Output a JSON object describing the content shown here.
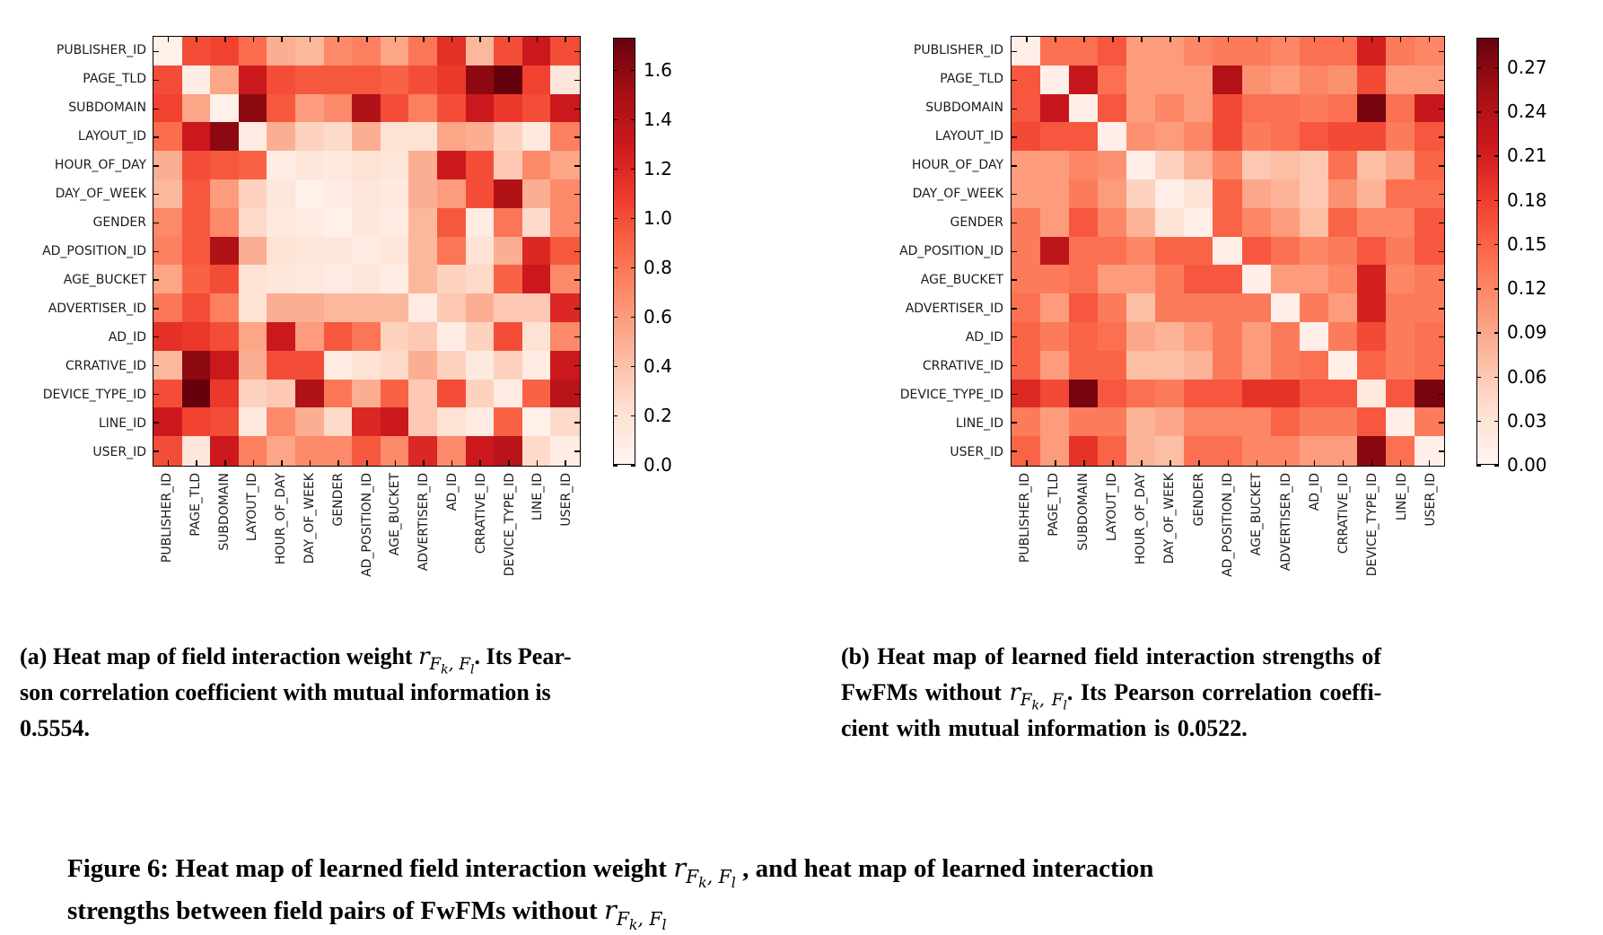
{
  "figure_background": "#ffffff",
  "colormap": {
    "name": "Reds",
    "stops": [
      "#fff5f0",
      "#fee0d2",
      "#fcbba1",
      "#fc9272",
      "#fb6a4a",
      "#ef3b2c",
      "#cb181d",
      "#a50f15",
      "#67000d"
    ]
  },
  "fields": [
    "PUBLISHER_ID",
    "PAGE_TLD",
    "SUBDOMAIN",
    "LAYOUT_ID",
    "HOUR_OF_DAY",
    "DAY_OF_WEEK",
    "GENDER",
    "AD_POSITION_ID",
    "AGE_BUCKET",
    "ADVERTISER_ID",
    "AD_ID",
    "CRRATIVE_ID",
    "DEVICE_TYPE_ID",
    "LINE_ID",
    "USER_ID"
  ],
  "chart_data": [
    {
      "type": "heatmap",
      "panel": "a",
      "title": "Heat map of field interaction weight r_Fk,Fl",
      "categories": [
        "PUBLISHER_ID",
        "PAGE_TLD",
        "SUBDOMAIN",
        "LAYOUT_ID",
        "HOUR_OF_DAY",
        "DAY_OF_WEEK",
        "GENDER",
        "AD_POSITION_ID",
        "AGE_BUCKET",
        "ADVERTISER_ID",
        "AD_ID",
        "CRRATIVE_ID",
        "DEVICE_TYPE_ID",
        "LINE_ID",
        "USER_ID"
      ],
      "vmin": 0,
      "vmax": 1.73,
      "colorbar_tick_values": [
        1.6,
        1.4,
        1.2,
        1.0,
        0.8,
        0.6,
        0.4,
        0.2,
        0.0
      ],
      "colorbar_tick_labels": [
        "1.6",
        "1.4",
        "1.2",
        "1.0",
        "0.8",
        "0.6",
        "0.4",
        "0.2",
        "0.0"
      ],
      "matrix": [
        [
          0.05,
          1.0,
          1.05,
          0.85,
          0.5,
          0.45,
          0.7,
          0.75,
          0.55,
          0.8,
          1.15,
          0.45,
          1.0,
          1.3,
          1.0
        ],
        [
          1.0,
          0.08,
          0.55,
          1.3,
          1.0,
          0.95,
          0.95,
          0.95,
          0.9,
          1.0,
          1.1,
          1.6,
          1.73,
          1.05,
          0.15
        ],
        [
          1.05,
          0.55,
          0.05,
          1.6,
          0.95,
          0.6,
          0.7,
          1.45,
          1.0,
          0.75,
          1.0,
          1.3,
          1.1,
          1.0,
          1.3
        ],
        [
          0.85,
          1.3,
          1.6,
          0.1,
          0.5,
          0.3,
          0.25,
          0.5,
          0.2,
          0.2,
          0.55,
          0.5,
          0.3,
          0.12,
          0.75
        ],
        [
          0.5,
          1.0,
          0.95,
          0.9,
          0.08,
          0.15,
          0.12,
          0.2,
          0.15,
          0.5,
          1.3,
          1.0,
          0.35,
          0.7,
          0.55
        ],
        [
          0.45,
          0.95,
          0.6,
          0.3,
          0.15,
          0.05,
          0.1,
          0.15,
          0.12,
          0.5,
          0.6,
          1.0,
          1.45,
          0.5,
          0.7
        ],
        [
          0.7,
          0.95,
          0.7,
          0.25,
          0.12,
          0.1,
          0.05,
          0.15,
          0.1,
          0.45,
          0.95,
          0.1,
          0.8,
          0.25,
          0.7
        ],
        [
          0.75,
          0.95,
          1.45,
          0.5,
          0.2,
          0.15,
          0.15,
          0.1,
          0.15,
          0.45,
          0.8,
          0.2,
          0.5,
          1.2,
          0.95
        ],
        [
          0.55,
          0.9,
          1.0,
          0.2,
          0.15,
          0.12,
          0.1,
          0.15,
          0.08,
          0.45,
          0.3,
          0.25,
          0.9,
          1.3,
          0.7
        ],
        [
          0.8,
          1.0,
          0.75,
          0.2,
          0.5,
          0.5,
          0.45,
          0.45,
          0.45,
          0.1,
          0.35,
          0.5,
          0.35,
          0.35,
          1.2
        ],
        [
          1.15,
          1.1,
          1.0,
          0.55,
          1.3,
          0.6,
          0.95,
          0.8,
          0.3,
          0.35,
          0.08,
          0.3,
          1.0,
          0.2,
          0.7
        ],
        [
          0.45,
          1.6,
          1.3,
          0.5,
          1.0,
          1.0,
          0.1,
          0.2,
          0.25,
          0.5,
          0.3,
          0.12,
          0.3,
          0.1,
          1.3
        ],
        [
          1.0,
          1.73,
          1.1,
          0.3,
          0.35,
          1.45,
          0.8,
          0.5,
          0.9,
          0.35,
          1.0,
          0.3,
          0.1,
          0.9,
          1.4
        ],
        [
          1.3,
          1.05,
          1.0,
          0.12,
          0.7,
          0.5,
          0.25,
          1.2,
          1.3,
          0.35,
          0.2,
          0.1,
          0.9,
          0.05,
          0.25
        ],
        [
          1.0,
          0.15,
          1.3,
          0.75,
          0.55,
          0.7,
          0.7,
          0.95,
          0.7,
          1.2,
          0.7,
          1.3,
          1.4,
          0.25,
          0.08
        ]
      ]
    },
    {
      "type": "heatmap",
      "panel": "b",
      "title": "Heat map of learned field interaction strengths of FwFMs without r_Fk,Fl",
      "categories": [
        "PUBLISHER_ID",
        "PAGE_TLD",
        "SUBDOMAIN",
        "LAYOUT_ID",
        "HOUR_OF_DAY",
        "DAY_OF_WEEK",
        "GENDER",
        "AD_POSITION_ID",
        "AGE_BUCKET",
        "ADVERTISER_ID",
        "AD_ID",
        "CRRATIVE_ID",
        "DEVICE_TYPE_ID",
        "LINE_ID",
        "USER_ID"
      ],
      "vmin": 0,
      "vmax": 0.29,
      "colorbar_tick_values": [
        0.27,
        0.24,
        0.21,
        0.18,
        0.15,
        0.12,
        0.09,
        0.06,
        0.03,
        0.0
      ],
      "colorbar_tick_labels": [
        "0.27",
        "0.24",
        "0.21",
        "0.18",
        "0.15",
        "0.12",
        "0.09",
        "0.06",
        "0.03",
        "0.00"
      ],
      "matrix": [
        [
          0.01,
          0.14,
          0.14,
          0.16,
          0.1,
          0.1,
          0.12,
          0.13,
          0.13,
          0.12,
          0.14,
          0.14,
          0.21,
          0.13,
          0.12
        ],
        [
          0.16,
          0.01,
          0.22,
          0.14,
          0.1,
          0.1,
          0.1,
          0.24,
          0.11,
          0.1,
          0.12,
          0.11,
          0.17,
          0.1,
          0.1
        ],
        [
          0.16,
          0.22,
          0.01,
          0.16,
          0.1,
          0.12,
          0.1,
          0.17,
          0.14,
          0.14,
          0.13,
          0.14,
          0.28,
          0.14,
          0.22
        ],
        [
          0.17,
          0.16,
          0.16,
          0.01,
          0.11,
          0.1,
          0.12,
          0.17,
          0.13,
          0.14,
          0.16,
          0.17,
          0.17,
          0.13,
          0.16
        ],
        [
          0.1,
          0.1,
          0.12,
          0.11,
          0.01,
          0.05,
          0.08,
          0.12,
          0.06,
          0.07,
          0.06,
          0.14,
          0.07,
          0.09,
          0.15
        ],
        [
          0.1,
          0.1,
          0.13,
          0.1,
          0.05,
          0.01,
          0.03,
          0.15,
          0.09,
          0.08,
          0.06,
          0.11,
          0.08,
          0.14,
          0.14
        ],
        [
          0.13,
          0.1,
          0.16,
          0.12,
          0.08,
          0.03,
          0.01,
          0.15,
          0.12,
          0.1,
          0.07,
          0.15,
          0.12,
          0.12,
          0.16
        ],
        [
          0.13,
          0.23,
          0.14,
          0.14,
          0.12,
          0.15,
          0.15,
          0.01,
          0.16,
          0.14,
          0.12,
          0.13,
          0.16,
          0.13,
          0.16
        ],
        [
          0.13,
          0.13,
          0.14,
          0.1,
          0.1,
          0.13,
          0.16,
          0.16,
          0.01,
          0.1,
          0.1,
          0.12,
          0.21,
          0.12,
          0.13
        ],
        [
          0.14,
          0.1,
          0.16,
          0.13,
          0.07,
          0.13,
          0.13,
          0.13,
          0.13,
          0.01,
          0.13,
          0.1,
          0.21,
          0.13,
          0.13
        ],
        [
          0.15,
          0.13,
          0.15,
          0.14,
          0.09,
          0.08,
          0.1,
          0.13,
          0.1,
          0.13,
          0.01,
          0.13,
          0.17,
          0.13,
          0.14
        ],
        [
          0.15,
          0.1,
          0.15,
          0.15,
          0.07,
          0.07,
          0.08,
          0.13,
          0.1,
          0.13,
          0.14,
          0.01,
          0.15,
          0.13,
          0.14
        ],
        [
          0.2,
          0.17,
          0.28,
          0.16,
          0.14,
          0.13,
          0.16,
          0.16,
          0.19,
          0.19,
          0.16,
          0.16,
          0.02,
          0.16,
          0.28
        ],
        [
          0.13,
          0.1,
          0.13,
          0.13,
          0.08,
          0.09,
          0.12,
          0.12,
          0.12,
          0.15,
          0.13,
          0.13,
          0.16,
          0.01,
          0.13
        ],
        [
          0.15,
          0.1,
          0.19,
          0.15,
          0.08,
          0.07,
          0.14,
          0.14,
          0.12,
          0.12,
          0.1,
          0.1,
          0.27,
          0.14,
          0.01
        ]
      ]
    }
  ],
  "math_symbol": {
    "base": "r",
    "subs": [
      {
        "b": "F",
        "s": "k"
      },
      {
        "t": ", "
      },
      {
        "b": "F",
        "s": "l"
      }
    ]
  },
  "captions": {
    "a_lines": [
      [
        {
          "t": "(a) Heat map of field interaction weight "
        },
        {
          "m": 1
        },
        {
          "t": ". Its Pear-"
        }
      ],
      [
        {
          "t": "son correlation coefficient with mutual information is"
        }
      ],
      [
        {
          "t": "0.5554."
        }
      ]
    ],
    "b_lines": [
      [
        {
          "t": "(b) Heat map of learned field interaction strengths of"
        }
      ],
      [
        {
          "t": "FwFMs without "
        },
        {
          "m": 1
        },
        {
          "t": ". Its Pearson correlation coeffi-"
        }
      ],
      [
        {
          "t": "cient with mutual information is 0.0522."
        }
      ]
    ],
    "figure_lines": [
      [
        {
          "t": "Figure 6: Heat map of learned field interaction weight "
        },
        {
          "m": 1
        },
        {
          "t": " , and heat map of learned interaction"
        }
      ],
      [
        {
          "t": "strengths between field pairs of FwFMs without "
        },
        {
          "m": 1
        }
      ]
    ]
  }
}
